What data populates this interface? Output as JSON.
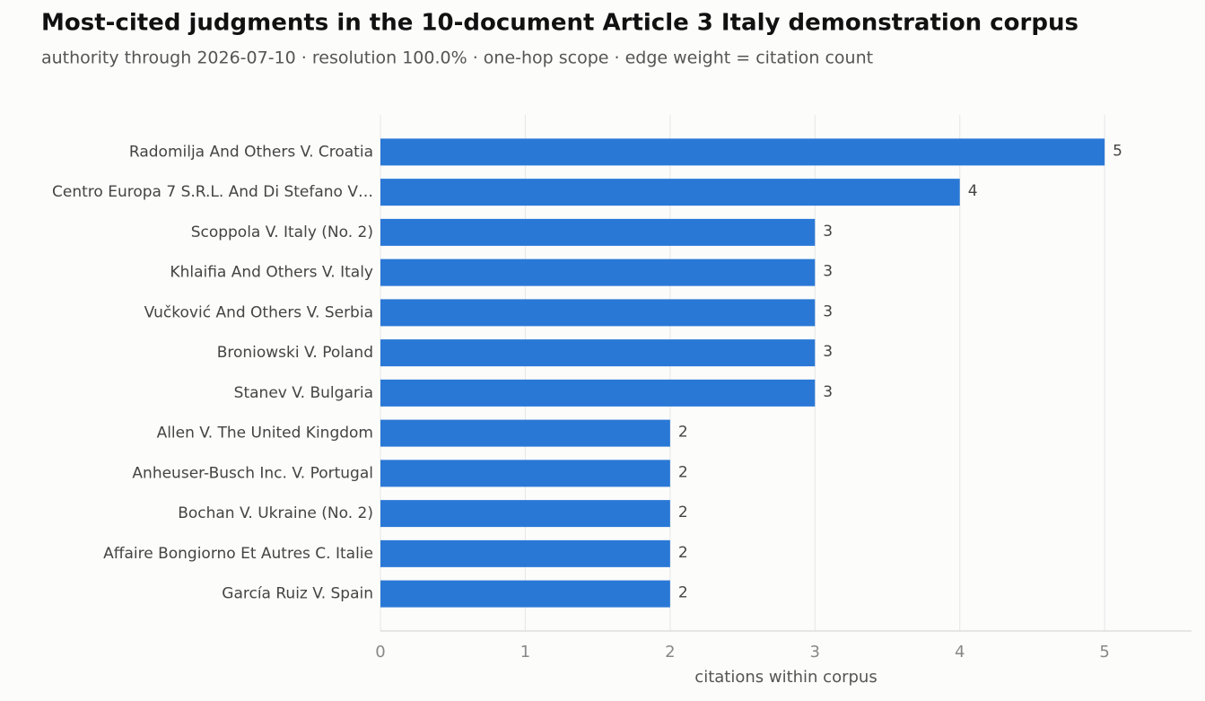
{
  "chart_data": {
    "type": "barh",
    "title": "Most-cited judgments in the 10-document Article 3 Italy demonstration corpus",
    "subtitle": "authority through 2026-07-10 · resolution 100.0% · one-hop scope · edge weight = citation count",
    "x_label": "citations within corpus",
    "categories": [
      "Radomilja And Others V. Croatia",
      "Centro Europa 7 S.R.L. And Di Stefano V…",
      "Scoppola V. Italy (No. 2)",
      "Khlaifia And Others V. Italy",
      "Vučković And Others V. Serbia",
      "Broniowski V. Poland",
      "Stanev V. Bulgaria",
      "Allen V. The United Kingdom",
      "Anheuser-Busch Inc. V. Portugal",
      "Bochan V. Ukraine (No. 2)",
      "Affaire Bongiorno Et Autres C. Italie",
      "García Ruiz V. Spain"
    ],
    "values": [
      5,
      4,
      3,
      3,
      3,
      3,
      3,
      2,
      2,
      2,
      2,
      2
    ],
    "color": "#2a78d6",
    "xlim": [
      0,
      5.6
    ],
    "xticks": [
      0,
      1,
      2,
      3,
      4,
      5
    ],
    "grid": true
  }
}
